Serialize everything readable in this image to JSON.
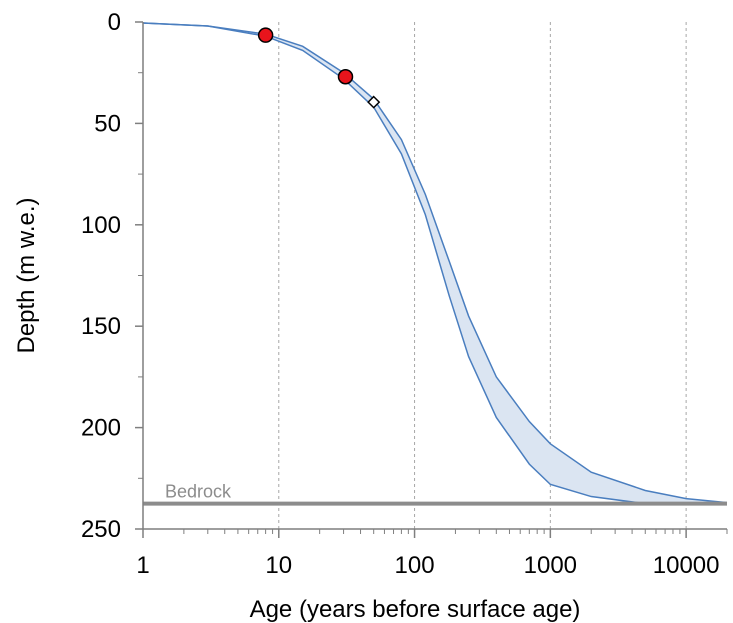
{
  "chart_data": {
    "type": "area",
    "title": "",
    "xlabel": "Age (years before surface age)",
    "ylabel": "Depth (m w.e.)",
    "x_scale": "log",
    "xlim": [
      1,
      20000
    ],
    "ylim": [
      0,
      250
    ],
    "y_inverted": true,
    "x_ticks": [
      1,
      10,
      100,
      1000,
      10000
    ],
    "x_tick_labels": [
      "1",
      "10",
      "100",
      "1000",
      "10000"
    ],
    "y_ticks": [
      0,
      50,
      100,
      150,
      200,
      250
    ],
    "y_tick_labels": [
      "0",
      "50",
      "100",
      "150",
      "200",
      "250"
    ],
    "grid": {
      "vertical_dashed": true,
      "horizontal": false
    },
    "band": {
      "color_line": "#4a7ebf",
      "color_fill": "#dbe5f2",
      "lower_age_edge": [
        [
          1,
          0.5
        ],
        [
          3,
          2
        ],
        [
          8,
          7
        ],
        [
          15,
          14
        ],
        [
          30,
          28
        ],
        [
          50,
          42
        ],
        [
          80,
          65
        ],
        [
          120,
          95
        ],
        [
          180,
          135
        ],
        [
          250,
          165
        ],
        [
          400,
          195
        ],
        [
          700,
          218
        ],
        [
          1000,
          228
        ],
        [
          2000,
          234
        ],
        [
          5000,
          237.5
        ]
      ],
      "upper_age_edge": [
        [
          1,
          0.5
        ],
        [
          3,
          2
        ],
        [
          8,
          6
        ],
        [
          15,
          12
        ],
        [
          30,
          25
        ],
        [
          50,
          38
        ],
        [
          80,
          58
        ],
        [
          120,
          85
        ],
        [
          180,
          118
        ],
        [
          250,
          145
        ],
        [
          400,
          175
        ],
        [
          700,
          197
        ],
        [
          1000,
          208
        ],
        [
          2000,
          222
        ],
        [
          5000,
          231
        ],
        [
          10000,
          235
        ],
        [
          20000,
          237
        ]
      ]
    },
    "points": [
      {
        "x": 8,
        "y": 6.5,
        "marker": "circle",
        "color": "#e8141c"
      },
      {
        "x": 31,
        "y": 27,
        "marker": "circle",
        "color": "#e8141c"
      },
      {
        "x": 50,
        "y": 39.5,
        "marker": "diamond",
        "color": "#ffffff",
        "xerr": [
          46,
          54
        ]
      }
    ],
    "reference_lines": [
      {
        "y": 237.5,
        "label": "Bedrock",
        "color": "#8c8c8c"
      }
    ]
  }
}
